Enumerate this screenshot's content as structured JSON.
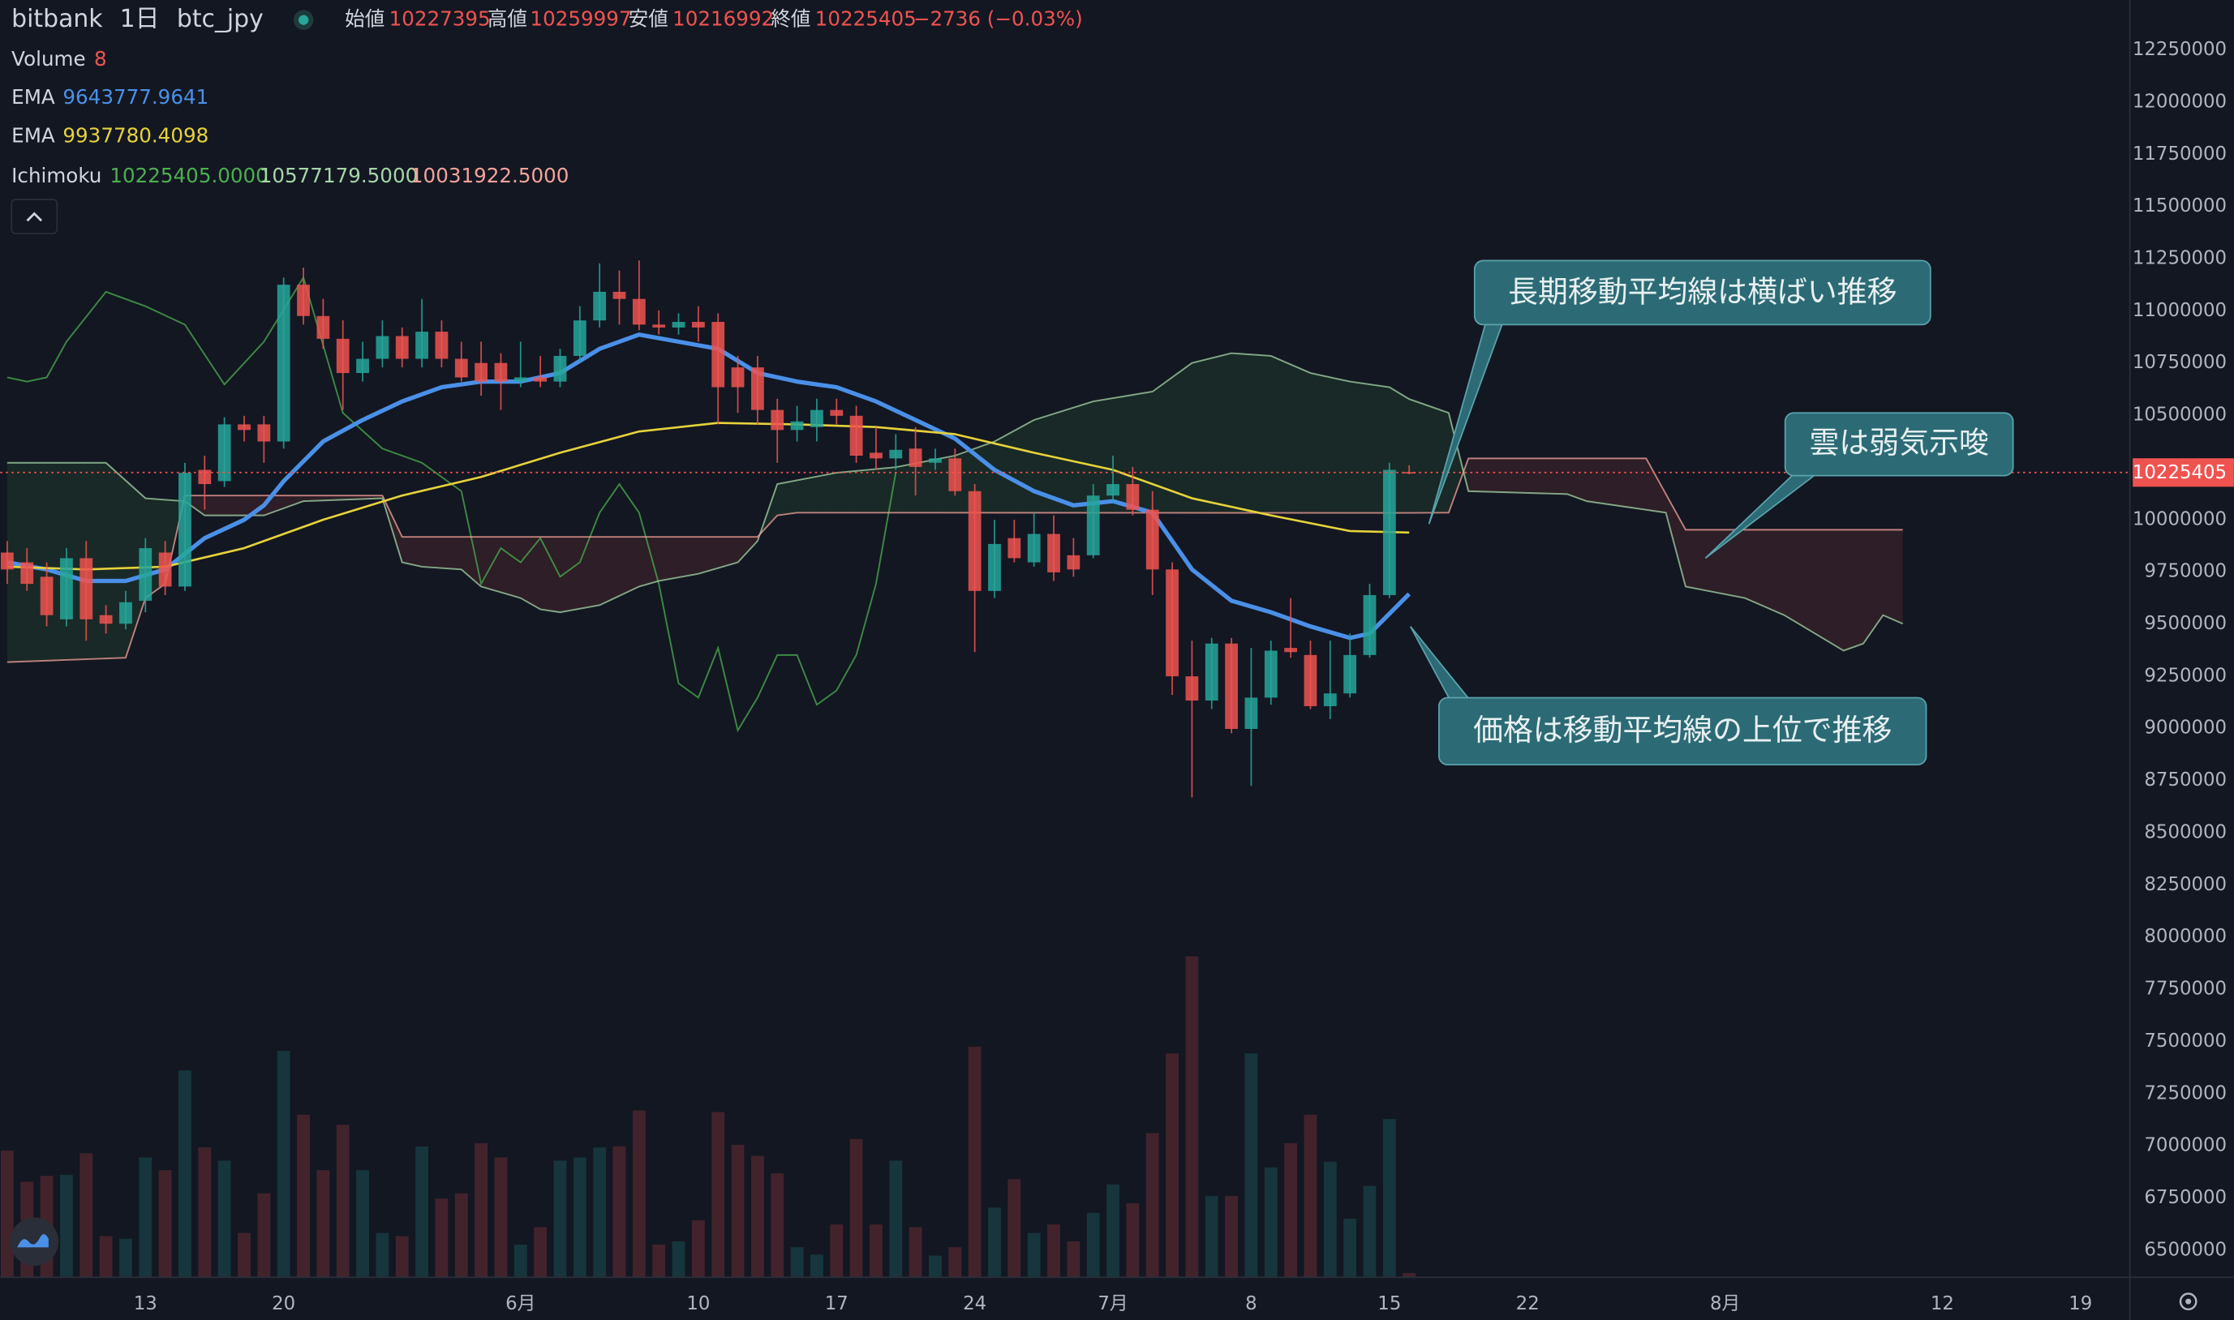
{
  "chart_data": {
    "type": "candlestick",
    "header": {
      "exchange": "bitbank",
      "interval": "1日",
      "symbol": "btc_jpy",
      "open_label": "始値",
      "high_label": "高値",
      "low_label": "安値",
      "close_label": "終値",
      "change": "−2736 (−0.03%)"
    },
    "up_color": "#26a69a",
    "down_color": "#ef5350",
    "x": [
      0,
      1,
      2,
      3,
      4,
      5,
      6,
      7,
      8,
      9,
      10,
      11,
      12,
      13,
      14,
      15,
      16,
      17,
      18,
      19,
      20,
      21,
      22,
      23,
      24,
      25,
      26,
      27,
      28,
      29,
      30,
      31,
      32,
      33,
      34,
      35,
      36,
      37,
      38,
      39,
      40,
      41,
      42,
      43,
      44,
      45,
      46,
      47,
      48,
      49,
      50,
      51,
      52,
      53,
      54,
      55,
      56,
      57,
      58,
      59,
      60,
      61,
      62,
      63,
      64,
      65,
      66,
      67,
      68,
      69,
      70,
      71
    ],
    "candles": {
      "open": [
        9842000,
        9795000,
        9726000,
        9522000,
        9815000,
        9542000,
        9501000,
        9611000,
        9842000,
        9679000,
        10238000,
        10184000,
        10456000,
        10456000,
        10374000,
        11125000,
        10975000,
        10866000,
        10702000,
        10770000,
        10879000,
        10770000,
        10900000,
        10770000,
        10750000,
        10750000,
        10661000,
        10681000,
        10661000,
        10784000,
        10954000,
        11091000,
        11057000,
        10934000,
        10920000,
        10947000,
        10947000,
        10729000,
        10729000,
        10525000,
        10429000,
        10443000,
        10525000,
        10497000,
        10320000,
        10293000,
        10340000,
        10272000,
        10293000,
        10136000,
        9658000,
        9911000,
        9795000,
        9931000,
        9829000,
        9829000,
        10115000,
        10170000,
        10047000,
        9761000,
        9249000,
        9133000,
        9406000,
        8997000,
        9147000,
        9385000,
        9351000,
        9106000,
        9167000,
        9351000,
        9638000,
        10227395
      ],
      "high": [
        9897000,
        9863000,
        9795000,
        9863000,
        9897000,
        9590000,
        9658000,
        9911000,
        9897000,
        10272000,
        10306000,
        10490000,
        10497000,
        10497000,
        11159000,
        11207000,
        11057000,
        10954000,
        10852000,
        10954000,
        10920000,
        11057000,
        10954000,
        10852000,
        10852000,
        10797000,
        10852000,
        10784000,
        10818000,
        11022000,
        11227000,
        11193000,
        11241000,
        11002000,
        10988000,
        11022000,
        10988000,
        10784000,
        10784000,
        10579000,
        10545000,
        10579000,
        10579000,
        10545000,
        10443000,
        10409000,
        10443000,
        10340000,
        10340000,
        10170000,
        9999000,
        9999000,
        10033000,
        10020000,
        9911000,
        10170000,
        10306000,
        10252000,
        10136000,
        9795000,
        9420000,
        9433000,
        9433000,
        9385000,
        9420000,
        9624000,
        9420000,
        9420000,
        9454000,
        9692000,
        10272000,
        10259997
      ],
      "low": [
        9692000,
        9658000,
        9488000,
        9488000,
        9420000,
        9454000,
        9474000,
        9556000,
        9638000,
        9658000,
        10047000,
        10156000,
        10374000,
        10272000,
        10340000,
        10934000,
        10818000,
        10525000,
        10661000,
        10729000,
        10729000,
        10729000,
        10729000,
        10661000,
        10593000,
        10525000,
        10634000,
        10634000,
        10634000,
        10750000,
        10920000,
        10934000,
        10907000,
        10886000,
        10886000,
        10852000,
        10456000,
        10511000,
        10456000,
        10272000,
        10374000,
        10374000,
        10456000,
        10272000,
        10238000,
        10238000,
        10115000,
        10238000,
        10115000,
        9365000,
        9624000,
        9795000,
        9774000,
        9706000,
        9726000,
        9815000,
        10088000,
        10020000,
        9638000,
        9160000,
        8669000,
        9092000,
        8976000,
        8724000,
        9113000,
        9338000,
        9092000,
        9044000,
        9147000,
        9338000,
        9624000,
        10216992
      ],
      "close": [
        9761000,
        9692000,
        9542000,
        9815000,
        9522000,
        9501000,
        9604000,
        9863000,
        9679000,
        10224000,
        10170000,
        10456000,
        10429000,
        10374000,
        11125000,
        10975000,
        10866000,
        10702000,
        10770000,
        10879000,
        10770000,
        10900000,
        10770000,
        10681000,
        10661000,
        10661000,
        10681000,
        10661000,
        10784000,
        10954000,
        11091000,
        11057000,
        10934000,
        10920000,
        10947000,
        10920000,
        10634000,
        10634000,
        10525000,
        10429000,
        10470000,
        10525000,
        10497000,
        10306000,
        10293000,
        10334000,
        10252000,
        10293000,
        10136000,
        9658000,
        9883000,
        9815000,
        9931000,
        9747000,
        9761000,
        10115000,
        10170000,
        10047000,
        9761000,
        9249000,
        9133000,
        9406000,
        8997000,
        9147000,
        9372000,
        9365000,
        9106000,
        9167000,
        9351000,
        9638000,
        10238000,
        10225405
      ]
    },
    "volume": {
      "name": "Volume",
      "ylim": [
        0,
        2420
      ],
      "values": [
        240,
        181,
        192,
        194,
        235,
        78,
        73,
        227,
        203,
        392,
        246,
        221,
        84,
        159,
        429,
        308,
        203,
        289,
        203,
        84,
        78,
        248,
        149,
        159,
        254,
        227,
        62,
        95,
        221,
        227,
        246,
        248,
        316,
        62,
        68,
        108,
        313,
        251,
        230,
        197,
        57,
        43,
        100,
        262,
        100,
        221,
        95,
        41,
        57,
        437,
        132,
        186,
        84,
        100,
        68,
        122,
        176,
        140,
        273,
        424,
        608,
        154,
        154,
        424,
        208,
        254,
        308,
        219,
        111,
        173,
        300,
        8
      ]
    },
    "series": [
      {
        "name": "EMA",
        "color": "#4a90e8",
        "x": [
          0,
          2,
          4,
          6,
          8,
          10,
          12,
          13,
          14,
          16,
          18,
          20,
          22,
          24,
          26,
          28,
          30,
          32,
          34,
          36,
          38,
          40,
          42,
          44,
          46,
          48,
          50,
          52,
          54,
          56,
          58,
          60,
          62,
          64,
          66,
          68,
          69,
          71
        ],
        "values": [
          9795000,
          9761000,
          9706000,
          9706000,
          9761000,
          9911000,
          9999000,
          10068000,
          10184000,
          10374000,
          10477000,
          10566000,
          10634000,
          10661000,
          10661000,
          10702000,
          10818000,
          10886000,
          10852000,
          10818000,
          10702000,
          10661000,
          10634000,
          10566000,
          10477000,
          10388000,
          10238000,
          10136000,
          10068000,
          10088000,
          10033000,
          9761000,
          9611000,
          9556000,
          9488000,
          9433000,
          9454000,
          9643777.9641
        ]
      },
      {
        "name": "EMA",
        "color": "#e6d23a",
        "x": [
          0,
          4,
          8,
          12,
          16,
          20,
          24,
          28,
          32,
          36,
          40,
          44,
          48,
          52,
          56,
          60,
          64,
          68,
          71
        ],
        "values": [
          9774000,
          9761000,
          9774000,
          9863000,
          9999000,
          10115000,
          10204000,
          10320000,
          10422000,
          10463000,
          10456000,
          10443000,
          10409000,
          10320000,
          10238000,
          10102000,
          10020000,
          9945000,
          9937780.4098
        ]
      }
    ],
    "ichimoku": {
      "name": "Ichimoku",
      "lines": [
        {
          "color": "#4caf50",
          "x": [
            0,
            1,
            2,
            3,
            5,
            7,
            9,
            11,
            13,
            15,
            17,
            19,
            21,
            23,
            24,
            25,
            26,
            27,
            28,
            29,
            30,
            31,
            32,
            33,
            34,
            35,
            36,
            37,
            38,
            39,
            40,
            41,
            42,
            43,
            44,
            45
          ],
          "values": [
            10681000,
            10661000,
            10681000,
            10852000,
            11091000,
            11022000,
            10934000,
            10647000,
            10852000,
            11159000,
            10511000,
            10340000,
            10272000,
            10136000,
            9692000,
            9863000,
            9795000,
            9911000,
            9726000,
            9795000,
            10033000,
            10170000,
            10033000,
            9692000,
            9215000,
            9147000,
            9385000,
            8990000,
            9147000,
            9351000,
            9351000,
            9113000,
            9181000,
            9351000,
            9692000,
            10225405
          ],
          "value_labels": [
            null,
            null,
            null,
            null,
            null,
            null,
            null,
            null,
            null,
            null,
            null,
            null,
            null,
            null,
            null,
            null,
            null,
            null,
            null,
            null,
            null,
            null,
            null,
            null,
            null,
            null,
            null,
            null,
            null,
            null,
            null,
            null,
            null,
            null,
            null,
            "10225405.0000"
          ]
        },
        {
          "color": "#a5d6a7",
          "x": [
            0,
            5,
            7,
            9,
            10,
            13,
            15,
            19,
            20,
            21,
            23,
            24,
            26,
            27,
            28,
            30,
            32,
            33,
            35,
            37,
            38,
            39,
            42,
            45,
            48,
            50,
            52,
            55,
            58,
            60,
            62,
            64,
            66,
            68,
            70,
            71,
            73,
            74,
            79,
            80,
            84,
            85,
            88,
            90,
            93,
            94,
            95,
            96
          ],
          "values": [
            10272000,
            10272000,
            10102000,
            10088000,
            10020000,
            10020000,
            10088000,
            10102000,
            9795000,
            9774000,
            9761000,
            9679000,
            9624000,
            9570000,
            9556000,
            9590000,
            9679000,
            9706000,
            9740000,
            9795000,
            9897000,
            10170000,
            10224000,
            10251000,
            10306000,
            10374000,
            10477000,
            10566000,
            10613000,
            10750000,
            10797000,
            10784000,
            10702000,
            10661000,
            10634000,
            10577179.5,
            10511000,
            10136000,
            10122000,
            10088000,
            10033000,
            9679000,
            9624000,
            9542000,
            9372000,
            9406000,
            9542000,
            9501000
          ],
          "value_labels": [
            null,
            null,
            null,
            null,
            null,
            null,
            null,
            null,
            null,
            null,
            null,
            null,
            null,
            null,
            null,
            null,
            null,
            null,
            null,
            null,
            null,
            null,
            null,
            null,
            null,
            null,
            null,
            null,
            null,
            null,
            null,
            null,
            null,
            null,
            null,
            "10577179.5000",
            null,
            null,
            null,
            null,
            null,
            null,
            null,
            null,
            null,
            null,
            null,
            null
          ]
        },
        {
          "color": "#f4a39a",
          "x": [
            0,
            6,
            7,
            8,
            9,
            19,
            20,
            38,
            39,
            40,
            71,
            73,
            74,
            83,
            85,
            96
          ],
          "values": [
            9317000,
            9338000,
            9624000,
            9692000,
            10115000,
            10115000,
            9917000,
            9917000,
            10020000,
            10033000,
            10031922.5,
            10033000,
            10293000,
            10293000,
            9951000,
            9951000
          ],
          "value_labels": [
            null,
            null,
            null,
            null,
            null,
            null,
            null,
            null,
            null,
            null,
            "10031922.5000",
            null,
            null,
            null,
            null,
            null
          ]
        }
      ]
    },
    "xlim": [
      -0.36,
      107.5
    ],
    "xticks": [
      {
        "value": 7,
        "label": "13"
      },
      {
        "value": 14,
        "label": "20"
      },
      {
        "value": 26,
        "label": "6月"
      },
      {
        "value": 35,
        "label": "10"
      },
      {
        "value": 42,
        "label": "17"
      },
      {
        "value": 49,
        "label": "24"
      },
      {
        "value": 56,
        "label": "7月"
      },
      {
        "value": 63,
        "label": "8"
      },
      {
        "value": 70,
        "label": "15"
      },
      {
        "value": 77,
        "label": "22"
      },
      {
        "value": 87,
        "label": "8月"
      },
      {
        "value": 98,
        "label": "12"
      },
      {
        "value": 105,
        "label": "19"
      }
    ],
    "ylim": [
      6370000,
      12489000
    ],
    "yticks": [
      6500000,
      6750000,
      7000000,
      7250000,
      7500000,
      7750000,
      8000000,
      8250000,
      8500000,
      8750000,
      9000000,
      9250000,
      9500000,
      9750000,
      10000000,
      10250000,
      10500000,
      10750000,
      11000000,
      11250000,
      11500000,
      11750000,
      12000000,
      12250000
    ],
    "annotations": [
      "長期移動平均線は横ばい推移",
      "雲は弱気示唆",
      "価格は移動平均線の上位で推移"
    ]
  }
}
